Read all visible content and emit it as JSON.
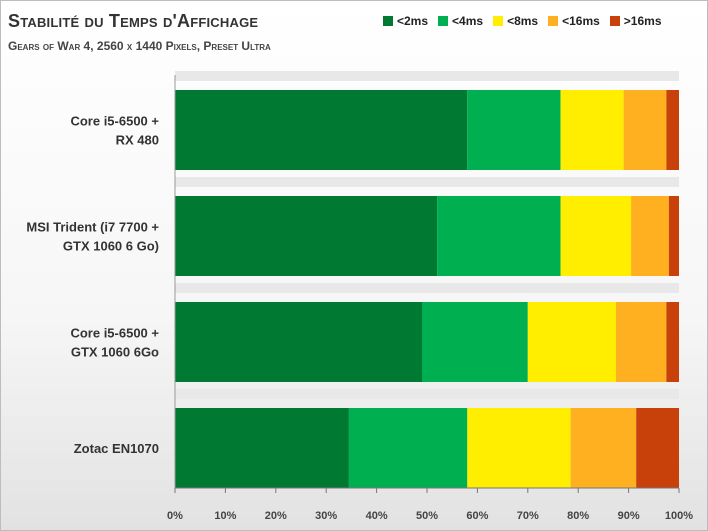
{
  "title": "Stabilité du Temps d'Affichage",
  "subtitle": "Gears of War 4, 2560 x 1440 Pixels, Preset Ultra",
  "chart_data": {
    "type": "bar",
    "orientation": "horizontal",
    "stacked": true,
    "title": "Stabilité du Temps d'Affichage",
    "subtitle": "Gears of War 4, 2560 x 1440 Pixels, Preset Ultra",
    "categories": [
      [
        "Core i5-6500 +",
        "RX 480"
      ],
      [
        "MSI Trident (i7 7700 +",
        "GTX 1060 6 Go)"
      ],
      [
        "Core i5-6500 +",
        "GTX 1060 6Go"
      ],
      [
        "Zotac EN1070"
      ]
    ],
    "series": [
      {
        "name": "<2ms",
        "color": "#007a33",
        "values": [
          58.0,
          52.0,
          49.0,
          34.5
        ]
      },
      {
        "name": "<4ms",
        "color": "#00b050",
        "values": [
          18.5,
          24.5,
          21.0,
          23.5
        ]
      },
      {
        "name": "<8ms",
        "color": "#ffee00",
        "values": [
          12.5,
          14.0,
          17.5,
          20.5
        ]
      },
      {
        "name": "<16ms",
        "color": "#ffb020",
        "values": [
          8.5,
          7.5,
          10.0,
          13.0
        ]
      },
      {
        "name": ">16ms",
        "color": "#c8400a",
        "values": [
          2.5,
          2.0,
          2.5,
          8.5
        ]
      }
    ],
    "xlim": [
      0,
      100
    ],
    "xticks": [
      "0%",
      "10%",
      "20%",
      "30%",
      "40%",
      "50%",
      "60%",
      "70%",
      "80%",
      "90%",
      "100%"
    ],
    "xlabel": "",
    "ylabel": "",
    "grid": false,
    "legend": "top-right"
  }
}
